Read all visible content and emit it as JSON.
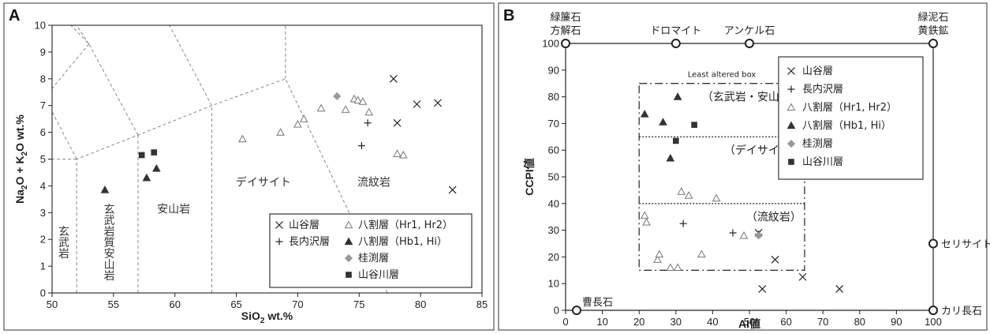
{
  "figure": {
    "panel_a_letter": "A",
    "panel_b_letter": "B"
  },
  "styles": {
    "cross_color": "#222222",
    "plus_color": "#222222",
    "open_triangle_color": "#777777",
    "filled_triangle_color": "#333333",
    "diamond_color": "#999999",
    "square_color": "#333333"
  },
  "chart_data": [
    {
      "type": "scatter",
      "panel": "A",
      "title": "",
      "xlabel_main": "SiO",
      "xlabel_sub": "2",
      "xlabel_tail": " wt.%",
      "ylabel_parts": [
        "Na",
        "2",
        "O + K",
        "2",
        "O wt.%"
      ],
      "xlim": [
        50,
        85
      ],
      "ylim": [
        0,
        10
      ],
      "xticks": [
        50,
        55,
        60,
        65,
        70,
        75,
        80,
        85
      ],
      "yticks": [
        0,
        1,
        2,
        3,
        4,
        5,
        6,
        7,
        8,
        9,
        10
      ],
      "field_labels": [
        {
          "text": "玄武岩",
          "x": 50.9,
          "y": 1.9,
          "vertical": true
        },
        {
          "text": "玄武岩質安山岩",
          "x": 54.6,
          "y": 1.9,
          "vertical": true
        },
        {
          "text": "安山岩",
          "x": 59.9,
          "y": 3.0,
          "vertical": false
        },
        {
          "text": "デイサイト",
          "x": 67.2,
          "y": 4.0,
          "vertical": false
        },
        {
          "text": "流紋岩",
          "x": 76.2,
          "y": 4.0,
          "vertical": false
        }
      ],
      "field_boundaries": [
        [
          [
            52,
            0
          ],
          [
            52,
            5
          ],
          [
            57,
            5.9
          ],
          [
            63,
            7
          ],
          [
            69,
            8
          ],
          [
            77.3,
            0
          ]
        ],
        [
          [
            57,
            0
          ],
          [
            57,
            5.9
          ]
        ],
        [
          [
            63,
            0
          ],
          [
            63,
            7
          ]
        ],
        [
          [
            45,
            5
          ],
          [
            52,
            5
          ]
        ],
        [
          [
            57,
            5.9
          ],
          [
            53,
            9.3
          ],
          [
            48.4,
            11.5
          ]
        ],
        [
          [
            63,
            7
          ],
          [
            57.6,
            11.7
          ]
        ],
        [
          [
            52,
            5
          ],
          [
            49.4,
            7.3
          ]
        ],
        [
          [
            53,
            9.3
          ],
          [
            52,
            10
          ]
        ],
        [
          [
            53,
            9.3
          ],
          [
            49.4,
            7.3
          ]
        ],
        [
          [
            69,
            8
          ],
          [
            69,
            12
          ]
        ]
      ],
      "legend_entries": [
        {
          "name": "山谷層",
          "marker": "x"
        },
        {
          "name": "長内沢層",
          "marker": "plus"
        },
        {
          "name": "八割層（Hr1, Hr2）",
          "marker": "triangle-open"
        },
        {
          "name": "八割層（Hb1, Hi）",
          "marker": "triangle-filled"
        },
        {
          "name": "桂渕層",
          "marker": "diamond"
        },
        {
          "name": "山谷川層",
          "marker": "square"
        }
      ],
      "series": [
        {
          "name": "山谷層",
          "marker": "x",
          "points": [
            [
              77.8,
              8.0
            ],
            [
              78.1,
              6.35
            ],
            [
              79.7,
              7.05
            ],
            [
              81.4,
              7.1
            ],
            [
              82.6,
              3.85
            ]
          ]
        },
        {
          "name": "長内沢層",
          "marker": "plus",
          "points": [
            [
              75.7,
              6.35
            ],
            [
              75.2,
              5.5
            ]
          ]
        },
        {
          "name": "八割層（Hr1, Hr2）",
          "marker": "triangle-open",
          "points": [
            [
              65.5,
              5.75
            ],
            [
              68.6,
              6.0
            ],
            [
              70.0,
              6.3
            ],
            [
              70.5,
              6.5
            ],
            [
              71.9,
              6.9
            ],
            [
              73.9,
              6.85
            ],
            [
              74.6,
              7.25
            ],
            [
              74.9,
              7.2
            ],
            [
              75.3,
              7.15
            ],
            [
              75.8,
              6.75
            ],
            [
              78.1,
              5.2
            ],
            [
              78.6,
              5.15
            ]
          ]
        },
        {
          "name": "八割層（Hb1, Hi）",
          "marker": "triangle-filled",
          "points": [
            [
              54.3,
              3.85
            ],
            [
              57.7,
              4.3
            ],
            [
              58.5,
              4.65
            ]
          ]
        },
        {
          "name": "桂渕層",
          "marker": "diamond",
          "points": [
            [
              73.2,
              7.35
            ]
          ]
        },
        {
          "name": "山谷川層",
          "marker": "square",
          "points": [
            [
              57.3,
              5.15
            ],
            [
              58.3,
              5.25
            ]
          ]
        }
      ]
    },
    {
      "type": "scatter",
      "panel": "B",
      "title": "",
      "xlabel": "AI値",
      "ylabel": "CCPI値",
      "xlim": [
        0,
        100
      ],
      "ylim": [
        0,
        100
      ],
      "xticks": [
        0,
        10,
        20,
        30,
        40,
        50,
        60,
        70,
        80,
        90,
        100
      ],
      "yticks": [
        0,
        10,
        20,
        30,
        40,
        50,
        60,
        70,
        80,
        90,
        100
      ],
      "least_altered_box": {
        "title": "Least altered box",
        "x": [
          20,
          65
        ],
        "y": [
          15,
          85
        ],
        "dividers_y": [
          65,
          40
        ],
        "labels": [
          {
            "text": "（玄武岩・安山岩）",
            "y": 80
          },
          {
            "text": "（デイサイト）",
            "y": 60
          },
          {
            "text": "（流紋岩）",
            "y": 35
          }
        ]
      },
      "end_members": [
        {
          "lines": [
            "緑簾石",
            "方解石"
          ],
          "x": 0,
          "y": 100,
          "label_pos": "above"
        },
        {
          "lines": [
            "ドロマイト"
          ],
          "x": 30,
          "y": 100,
          "label_pos": "above"
        },
        {
          "lines": [
            "アンケル石"
          ],
          "x": 50,
          "y": 100,
          "label_pos": "above"
        },
        {
          "lines": [
            "緑泥石",
            "黄鉄鉱"
          ],
          "x": 100,
          "y": 100,
          "label_pos": "above"
        },
        {
          "lines": [
            "セリサイト"
          ],
          "x": 100,
          "y": 25,
          "label_pos": "right"
        },
        {
          "lines": [
            "カリ長石"
          ],
          "x": 100,
          "y": 0,
          "label_pos": "right"
        },
        {
          "lines": [
            "曹長石"
          ],
          "x": 3,
          "y": 0,
          "label_pos": "above-right"
        }
      ],
      "legend_entries": [
        {
          "name": "山谷層",
          "marker": "x"
        },
        {
          "name": "長内沢層",
          "marker": "plus"
        },
        {
          "name": "八割層（Hr1, Hr2）",
          "marker": "triangle-open"
        },
        {
          "name": "八割層（Hb1, Hi）",
          "marker": "triangle-filled"
        },
        {
          "name": "桂渕層",
          "marker": "diamond"
        },
        {
          "name": "山谷川層",
          "marker": "square"
        }
      ],
      "series": [
        {
          "name": "山谷層",
          "marker": "x",
          "points": [
            [
              52.5,
              29
            ],
            [
              53.5,
              8
            ],
            [
              57,
              19
            ],
            [
              64.5,
              12.5
            ],
            [
              74.5,
              8
            ]
          ]
        },
        {
          "name": "長内沢層",
          "marker": "plus",
          "points": [
            [
              32,
              32.5
            ],
            [
              45.5,
              29
            ],
            [
              52.5,
              28.5
            ]
          ]
        },
        {
          "name": "八割層（Hr1, Hr2）",
          "marker": "triangle-open",
          "points": [
            [
              21.5,
              35.5
            ],
            [
              22,
              33
            ],
            [
              25,
              19
            ],
            [
              25.5,
              21
            ],
            [
              28.5,
              16
            ],
            [
              30.5,
              16
            ],
            [
              31.5,
              44.5
            ],
            [
              33.5,
              43
            ],
            [
              37,
              21
            ],
            [
              41,
              42
            ],
            [
              48.5,
              28
            ]
          ]
        },
        {
          "name": "八割層（Hb1, Hi）",
          "marker": "triangle-filled",
          "points": [
            [
              21.5,
              73.5
            ],
            [
              26.5,
              70.5
            ],
            [
              28.5,
              57
            ],
            [
              30.5,
              80
            ]
          ]
        },
        {
          "name": "桂渕層",
          "marker": "diamond",
          "points": [
            [
              52.5,
              28
            ]
          ]
        },
        {
          "name": "山谷川層",
          "marker": "square",
          "points": [
            [
              30,
              63.5
            ],
            [
              35,
              69.5
            ]
          ]
        }
      ]
    }
  ]
}
